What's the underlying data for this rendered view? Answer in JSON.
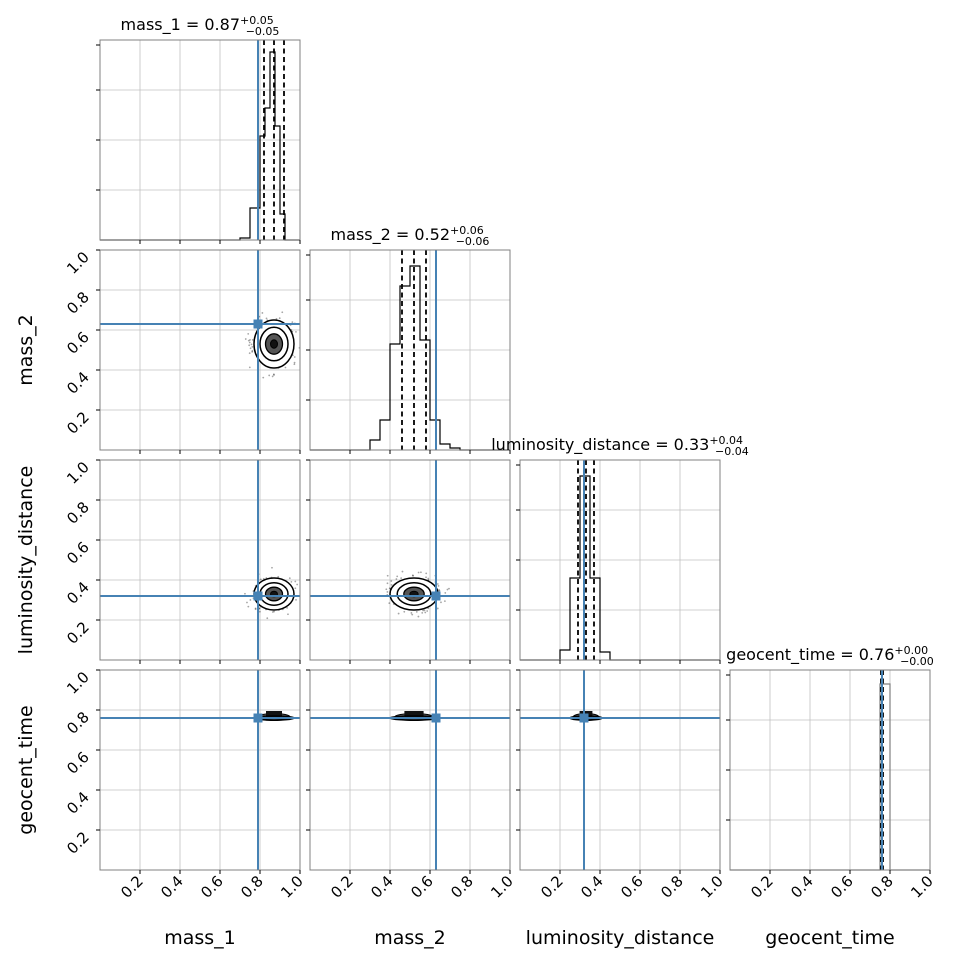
{
  "chart_data": {
    "type": "corner",
    "parameters": [
      "mass_1",
      "mass_2",
      "luminosity_distance",
      "geocent_time"
    ],
    "axis_labels": {
      "x": [
        "mass_1",
        "mass_2",
        "luminosity_distance",
        "geocent_time"
      ],
      "y": [
        "mass_2",
        "luminosity_distance",
        "geocent_time"
      ]
    },
    "tick_labels": [
      "0.2",
      "0.4",
      "0.6",
      "0.8",
      "1.0"
    ],
    "ticks": [
      0.2,
      0.4,
      0.6,
      0.8,
      1.0
    ],
    "range": [
      0,
      1
    ],
    "grid": true,
    "truths": [
      0.79,
      0.63,
      0.32,
      0.76
    ],
    "colors": {
      "truth": "#4682b4",
      "histogram": "#000000",
      "grid": "#c0c0c0",
      "frame": "#808080"
    },
    "titles": [
      {
        "name": "mass_1",
        "median": "0.87",
        "plus": "+0.05",
        "minus": "−0.05"
      },
      {
        "name": "mass_2",
        "median": "0.52",
        "plus": "+0.06",
        "minus": "−0.06"
      },
      {
        "name": "luminosity_distance",
        "median": "0.33",
        "plus": "+0.04",
        "minus": "−0.04"
      },
      {
        "name": "geocent_time",
        "median": "0.76",
        "plus": "+0.00",
        "minus": "−0.00"
      }
    ],
    "marginals": [
      {
        "param": "mass_1",
        "quantiles": [
          0.82,
          0.87,
          0.92
        ],
        "bins": [
          0.7,
          0.75,
          0.8,
          0.825,
          0.85,
          0.875,
          0.9,
          0.925,
          0.95
        ],
        "counts": [
          0.01,
          0.16,
          0.52,
          0.66,
          0.94,
          0.57,
          0.13,
          0.0
        ]
      },
      {
        "param": "mass_2",
        "quantiles": [
          0.46,
          0.52,
          0.58
        ],
        "bins": [
          0.3,
          0.35,
          0.4,
          0.45,
          0.5,
          0.55,
          0.6,
          0.65,
          0.7,
          0.75
        ],
        "counts": [
          0.05,
          0.15,
          0.53,
          0.82,
          0.92,
          0.55,
          0.15,
          0.03,
          0.01
        ]
      },
      {
        "param": "luminosity_distance",
        "quantiles": [
          0.29,
          0.33,
          0.37
        ],
        "bins": [
          0.2,
          0.25,
          0.3,
          0.35,
          0.4,
          0.45
        ],
        "counts": [
          0.05,
          0.41,
          0.92,
          0.41,
          0.04
        ]
      },
      {
        "param": "geocent_time",
        "quantiles": [
          0.755,
          0.76,
          0.765
        ],
        "bins": [
          0.0,
          0.75,
          0.8,
          1.0
        ],
        "counts": [
          0.0,
          0.93,
          0.0
        ]
      }
    ],
    "posteriors_2d": [
      {
        "x": "mass_1",
        "y": "mass_2",
        "center": [
          0.87,
          0.53
        ],
        "spread": [
          0.05,
          0.06
        ],
        "samples": 380
      },
      {
        "x": "mass_1",
        "y": "luminosity_distance",
        "center": [
          0.87,
          0.33
        ],
        "spread": [
          0.05,
          0.04
        ],
        "samples": 380
      },
      {
        "x": "mass_2",
        "y": "luminosity_distance",
        "center": [
          0.52,
          0.33
        ],
        "spread": [
          0.06,
          0.04
        ],
        "samples": 380
      },
      {
        "x": "mass_1",
        "y": "geocent_time",
        "center": [
          0.87,
          0.765
        ],
        "spread": [
          0.05,
          0.012
        ],
        "samples": 0
      },
      {
        "x": "mass_2",
        "y": "geocent_time",
        "center": [
          0.52,
          0.765
        ],
        "spread": [
          0.06,
          0.012
        ],
        "samples": 0
      },
      {
        "x": "luminosity_distance",
        "y": "geocent_time",
        "center": [
          0.33,
          0.765
        ],
        "spread": [
          0.04,
          0.012
        ],
        "samples": 0
      }
    ]
  }
}
